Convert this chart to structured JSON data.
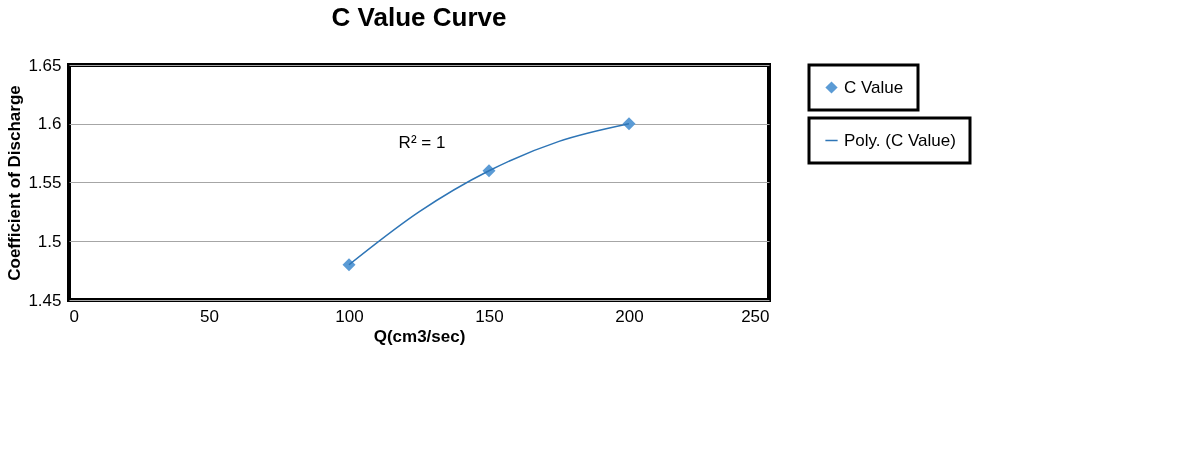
{
  "chart_data": {
    "type": "scatter",
    "title": "C Value Curve",
    "xlabel": "Q(cm3/sec)",
    "ylabel": "Coefficient of Discharge",
    "xlim": [
      0,
      250
    ],
    "xticks": [
      0,
      50,
      100,
      150,
      200,
      250
    ],
    "ylim": [
      1.45,
      1.65
    ],
    "yticks": [
      1.45,
      1.5,
      1.55,
      1.6,
      1.65
    ],
    "grid": "y",
    "legend": "right",
    "marker": "diamond",
    "series": [
      {
        "name": "C Value",
        "color": "#5b9bd5",
        "x": [
          100,
          150,
          200
        ],
        "values": [
          1.48,
          1.56,
          1.6
        ]
      },
      {
        "name": "Poly. (C Value)",
        "type": "line",
        "color": "#2e75b6",
        "marker": "none",
        "line_style": "solid",
        "x": [
          100,
          125,
          150,
          175,
          200
        ],
        "values": [
          1.48,
          1.525,
          1.56,
          1.585,
          1.6
        ]
      }
    ],
    "annotations": [
      "R² = 1"
    ]
  }
}
